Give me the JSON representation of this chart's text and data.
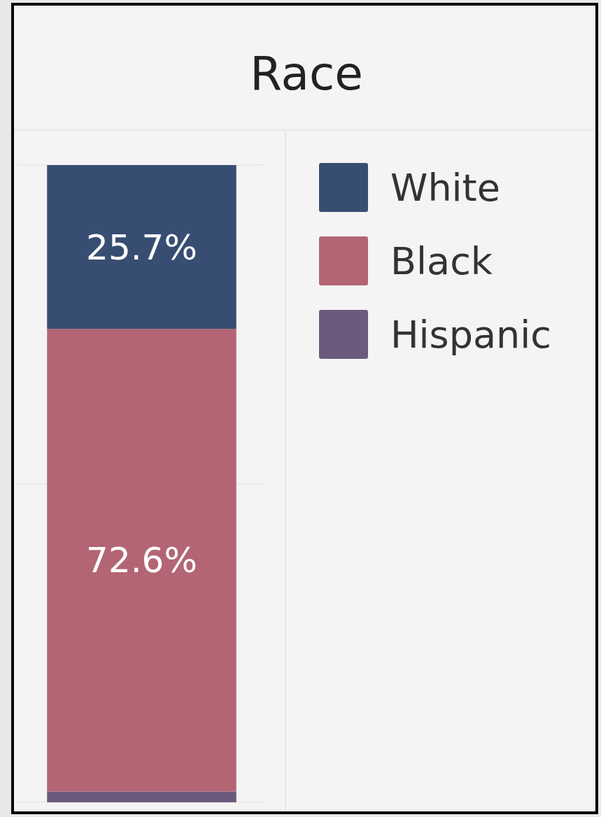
{
  "chart_data": {
    "type": "bar",
    "title": "Race",
    "categories": [
      null
    ],
    "stacked": true,
    "series": [
      {
        "name": "Hispanic",
        "color": "#6b5a7c",
        "values": [
          1.7
        ],
        "value_labels": [
          null
        ]
      },
      {
        "name": "Black",
        "color": "#b36574",
        "values": [
          72.6
        ],
        "value_labels": [
          "72.6%"
        ]
      },
      {
        "name": "White",
        "color": "#384d72",
        "values": [
          25.7
        ],
        "value_labels": [
          "25.7%"
        ]
      }
    ],
    "ylim": [
      0,
      100
    ],
    "yticks": [
      0,
      50,
      100
    ],
    "tick_labels": false,
    "grid": "y",
    "legend": "right"
  }
}
